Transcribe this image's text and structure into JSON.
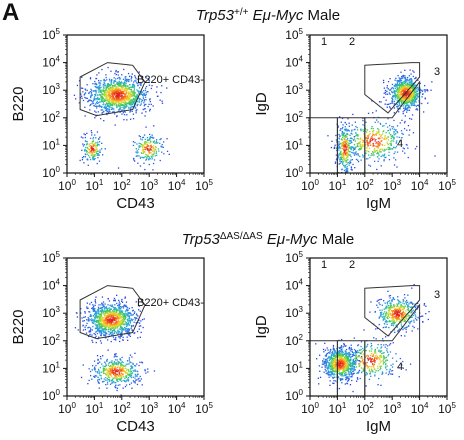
{
  "figure": {
    "panel_letter": "A",
    "rows": [
      {
        "title_gene": "Trp53",
        "title_sup": "+/+",
        "title_emu": "Eμ",
        "title_myc": "-Myc",
        "title_sex": "Male"
      },
      {
        "title_gene": "Trp53",
        "title_sup": "ΔAS/ΔAS",
        "title_emu": "Eμ",
        "title_myc": "-Myc",
        "title_sex": "Male"
      }
    ],
    "left_plot": {
      "xlabel": "CD43",
      "ylabel": "B220",
      "gate_label": "B220+ CD43-"
    },
    "right_plot": {
      "xlabel": "IgM",
      "ylabel": "IgD",
      "gate_labels": [
        "1",
        "2",
        "3",
        "4"
      ]
    },
    "tick_base": "10",
    "tick_exponents": [
      "0",
      "1",
      "2",
      "3",
      "4",
      "5"
    ]
  },
  "chart_data": [
    {
      "type": "scatter",
      "row": "top",
      "plot": "B220 vs CD43",
      "xlabel": "CD43",
      "ylabel": "B220",
      "xscale": "log",
      "yscale": "log",
      "xlim": [
        1,
        100000
      ],
      "ylim": [
        1,
        100000
      ],
      "populations": [
        {
          "center": [
            70,
            700
          ],
          "spread_decades": [
            0.55,
            0.33
          ],
          "share": 0.76
        },
        {
          "center": [
            8,
            8
          ],
          "spread_decades": [
            0.18,
            0.25
          ],
          "share": 0.11
        },
        {
          "center": [
            900,
            8
          ],
          "spread_decades": [
            0.28,
            0.25
          ],
          "share": 0.13
        }
      ],
      "gates": [
        {
          "label": "B220+ CD43-",
          "polygon": [
            [
              3,
              3000
            ],
            [
              30,
              10000
            ],
            [
              250,
              8000
            ],
            [
              700,
              2000
            ],
            [
              250,
              200
            ],
            [
              12,
              120
            ],
            [
              3,
              200
            ]
          ]
        }
      ]
    },
    {
      "type": "scatter",
      "row": "top",
      "plot": "IgD vs IgM",
      "xlabel": "IgM",
      "ylabel": "IgD",
      "xscale": "log",
      "yscale": "log",
      "xlim": [
        1,
        100000
      ],
      "ylim": [
        1,
        100000
      ],
      "populations": [
        {
          "center": [
            3000,
            800
          ],
          "spread_decades": [
            0.3,
            0.3
          ],
          "share": 0.52
        },
        {
          "center": [
            18,
            8
          ],
          "spread_decades": [
            0.15,
            0.45
          ],
          "share": 0.2
        },
        {
          "center": [
            200,
            15
          ],
          "spread_decades": [
            0.6,
            0.4
          ],
          "share": 0.28
        }
      ],
      "gates": [
        {
          "label": "1",
          "polygon": [
            [
              1,
              100
            ],
            [
              10,
              100
            ],
            [
              10,
              1
            ],
            [
              1,
              1
            ]
          ]
        },
        {
          "label": "2",
          "polygon": [
            [
              10,
              100
            ],
            [
              100,
              100
            ],
            [
              100,
              1
            ],
            [
              10,
              1
            ]
          ]
        },
        {
          "label": "3",
          "polygon": [
            [
              100,
              100
            ],
            [
              1000,
              100
            ],
            [
              10000,
              2000
            ],
            [
              10000,
              1
            ],
            [
              100,
              1
            ]
          ]
        },
        {
          "label": "4",
          "polygon": [
            [
              100,
              8000
            ],
            [
              5000,
              10000
            ],
            [
              10000,
              10000
            ],
            [
              10000,
              3000
            ],
            [
              700,
              150
            ],
            [
              100,
              700
            ]
          ]
        }
      ]
    },
    {
      "type": "scatter",
      "row": "bottom",
      "plot": "B220 vs CD43",
      "xlabel": "CD43",
      "ylabel": "B220",
      "xscale": "log",
      "yscale": "log",
      "xlim": [
        1,
        100000
      ],
      "ylim": [
        1,
        100000
      ],
      "populations": [
        {
          "center": [
            40,
            600
          ],
          "spread_decades": [
            0.45,
            0.3
          ],
          "share": 0.7
        },
        {
          "center": [
            60,
            8
          ],
          "spread_decades": [
            0.45,
            0.25
          ],
          "share": 0.3
        }
      ],
      "gates": [
        {
          "label": "B220+ CD43-",
          "polygon": [
            [
              3,
              3000
            ],
            [
              30,
              10000
            ],
            [
              250,
              8000
            ],
            [
              700,
              2000
            ],
            [
              250,
              200
            ],
            [
              12,
              120
            ],
            [
              3,
              200
            ]
          ]
        }
      ]
    },
    {
      "type": "scatter",
      "row": "bottom",
      "plot": "IgD vs IgM",
      "xlabel": "IgM",
      "ylabel": "IgD",
      "xscale": "log",
      "yscale": "log",
      "xlim": [
        1,
        100000
      ],
      "ylim": [
        1,
        100000
      ],
      "populations": [
        {
          "center": [
            12,
            15
          ],
          "spread_decades": [
            0.3,
            0.3
          ],
          "share": 0.5
        },
        {
          "center": [
            1500,
            1000
          ],
          "spread_decades": [
            0.4,
            0.3
          ],
          "share": 0.3
        },
        {
          "center": [
            150,
            20
          ],
          "spread_decades": [
            0.5,
            0.35
          ],
          "share": 0.2
        }
      ],
      "gates": [
        {
          "label": "1",
          "polygon": [
            [
              1,
              100
            ],
            [
              10,
              100
            ],
            [
              10,
              1
            ],
            [
              1,
              1
            ]
          ]
        },
        {
          "label": "2",
          "polygon": [
            [
              10,
              100
            ],
            [
              100,
              100
            ],
            [
              100,
              1
            ],
            [
              10,
              1
            ]
          ]
        },
        {
          "label": "3",
          "polygon": [
            [
              100,
              100
            ],
            [
              1000,
              100
            ],
            [
              10000,
              2000
            ],
            [
              10000,
              1
            ],
            [
              100,
              1
            ]
          ]
        },
        {
          "label": "4",
          "polygon": [
            [
              100,
              8000
            ],
            [
              5000,
              10000
            ],
            [
              10000,
              10000
            ],
            [
              10000,
              3000
            ],
            [
              700,
              150
            ],
            [
              100,
              700
            ]
          ]
        }
      ]
    }
  ]
}
